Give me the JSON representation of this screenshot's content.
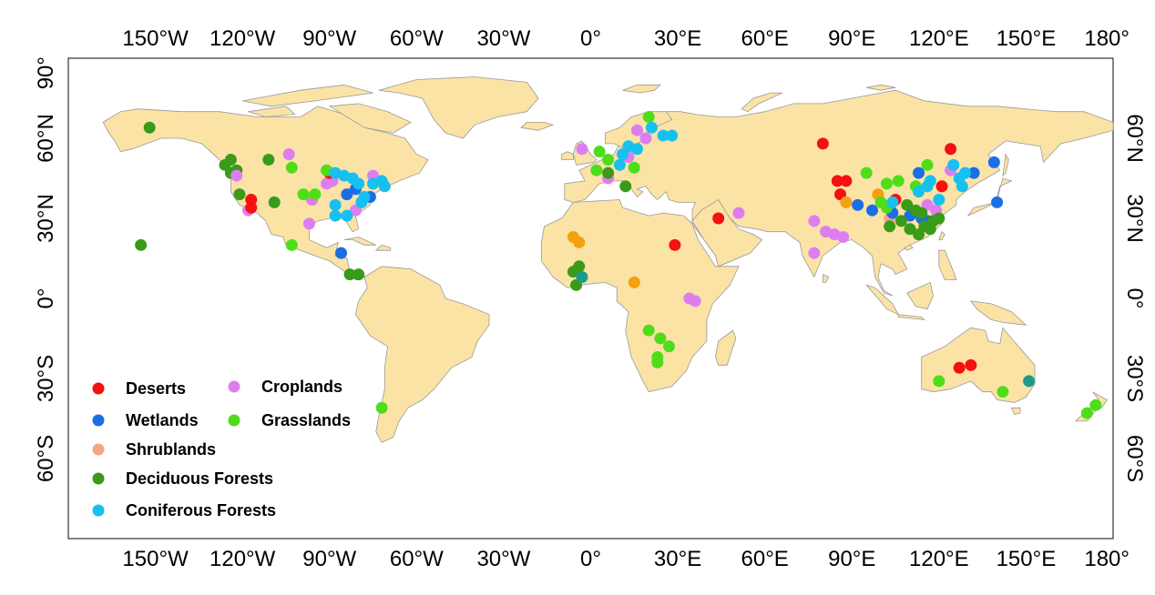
{
  "map": {
    "projection": "equirectangular",
    "extent": {
      "lon": [
        -180,
        180
      ],
      "lat": [
        -90,
        90
      ]
    },
    "land_color": "#fbe3a6",
    "border_color": "#9a9a9a",
    "lon_ticks": [
      {
        "value": -150,
        "label": "150°W"
      },
      {
        "value": -120,
        "label": "120°W"
      },
      {
        "value": -90,
        "label": "90°W"
      },
      {
        "value": -60,
        "label": "60°W"
      },
      {
        "value": -30,
        "label": "30°W"
      },
      {
        "value": 0,
        "label": "0°"
      },
      {
        "value": 30,
        "label": "30°E"
      },
      {
        "value": 60,
        "label": "60°E"
      },
      {
        "value": 90,
        "label": "90°E"
      },
      {
        "value": 120,
        "label": "120°E"
      },
      {
        "value": 150,
        "label": "150°E"
      },
      {
        "value": 180,
        "label": "180°"
      }
    ],
    "lat_ticks": [
      {
        "value": 90,
        "label": "90°"
      },
      {
        "value": 60,
        "label": "60°N"
      },
      {
        "value": 30,
        "label": "30°N"
      },
      {
        "value": 0,
        "label": "0°"
      },
      {
        "value": -30,
        "label": "30°S"
      },
      {
        "value": -60,
        "label": "60°S"
      }
    ]
  },
  "legend": {
    "placement": "bottom-left",
    "items": [
      {
        "key": "deserts",
        "label": "Deserts",
        "color": "#f5110f"
      },
      {
        "key": "wetlands",
        "label": "Wetlands",
        "color": "#1a6ee6"
      },
      {
        "key": "shrublands",
        "label": "Shrublands",
        "color": "#f4a582"
      },
      {
        "key": "deciduous",
        "label": "Deciduous Forests",
        "color": "#3a9a1a"
      },
      {
        "key": "coniferous",
        "label": "Coniferous Forests",
        "color": "#17c0ee"
      },
      {
        "key": "croplands",
        "label": "Croplands",
        "color": "#dd7ef0"
      },
      {
        "key": "grasslands",
        "label": "Grasslands",
        "color": "#4fdd1a"
      },
      {
        "key": "savanna",
        "label": "",
        "color": "#f5a00f"
      },
      {
        "key": "teal",
        "label": "",
        "color": "#1e9a8a"
      }
    ]
  },
  "sites": [
    {
      "cat": "deciduous",
      "lon": -152,
      "lat": 64
    },
    {
      "cat": "deciduous",
      "lon": -155,
      "lat": 20
    },
    {
      "cat": "deciduous",
      "lon": -126,
      "lat": 50
    },
    {
      "cat": "deciduous",
      "lon": -124,
      "lat": 52
    },
    {
      "cat": "deciduous",
      "lon": -124,
      "lat": 47
    },
    {
      "cat": "deciduous",
      "lon": -122,
      "lat": 48
    },
    {
      "cat": "deciduous",
      "lon": -121,
      "lat": 39
    },
    {
      "cat": "deciduous",
      "lon": -111,
      "lat": 52
    },
    {
      "cat": "deciduous",
      "lon": -109,
      "lat": 36
    },
    {
      "cat": "croplands",
      "lon": -122,
      "lat": 46
    },
    {
      "cat": "croplands",
      "lon": -104,
      "lat": 54
    },
    {
      "cat": "croplands",
      "lon": -118,
      "lat": 33
    },
    {
      "cat": "croplands",
      "lon": -96,
      "lat": 37
    },
    {
      "cat": "croplands",
      "lon": -97,
      "lat": 28
    },
    {
      "cat": "croplands",
      "lon": -91,
      "lat": 43
    },
    {
      "cat": "croplands",
      "lon": -89,
      "lat": 44
    },
    {
      "cat": "croplands",
      "lon": -81,
      "lat": 33
    },
    {
      "cat": "croplands",
      "lon": -75,
      "lat": 46
    },
    {
      "cat": "deserts",
      "lon": -117,
      "lat": 37
    },
    {
      "cat": "deserts",
      "lon": -117,
      "lat": 34
    },
    {
      "cat": "deserts",
      "lon": -90,
      "lat": 47
    },
    {
      "cat": "wetlands",
      "lon": -81,
      "lat": 41
    },
    {
      "cat": "wetlands",
      "lon": -84,
      "lat": 39
    },
    {
      "cat": "wetlands",
      "lon": -76,
      "lat": 38
    },
    {
      "cat": "wetlands",
      "lon": -86,
      "lat": 17
    },
    {
      "cat": "grasslands",
      "lon": -103,
      "lat": 49
    },
    {
      "cat": "grasslands",
      "lon": -99,
      "lat": 39
    },
    {
      "cat": "grasslands",
      "lon": -95,
      "lat": 39
    },
    {
      "cat": "grasslands",
      "lon": -91,
      "lat": 48
    },
    {
      "cat": "grasslands",
      "lon": -103,
      "lat": 20
    },
    {
      "cat": "grasslands",
      "lon": -72,
      "lat": -41
    },
    {
      "cat": "coniferous",
      "lon": -88,
      "lat": 47
    },
    {
      "cat": "coniferous",
      "lon": -85,
      "lat": 46
    },
    {
      "cat": "coniferous",
      "lon": -82,
      "lat": 45
    },
    {
      "cat": "coniferous",
      "lon": -80,
      "lat": 43
    },
    {
      "cat": "coniferous",
      "lon": -75,
      "lat": 43
    },
    {
      "cat": "coniferous",
      "lon": -72,
      "lat": 44
    },
    {
      "cat": "coniferous",
      "lon": -71,
      "lat": 42
    },
    {
      "cat": "coniferous",
      "lon": -78,
      "lat": 38
    },
    {
      "cat": "coniferous",
      "lon": -79,
      "lat": 36
    },
    {
      "cat": "coniferous",
      "lon": -88,
      "lat": 35
    },
    {
      "cat": "coniferous",
      "lon": -84,
      "lat": 31
    },
    {
      "cat": "coniferous",
      "lon": -88,
      "lat": 31
    },
    {
      "cat": "deciduous",
      "lon": -83,
      "lat": 9
    },
    {
      "cat": "deciduous",
      "lon": -80,
      "lat": 9
    },
    {
      "cat": "savanna",
      "lon": -6,
      "lat": 23
    },
    {
      "cat": "savanna",
      "lon": -4,
      "lat": 21
    },
    {
      "cat": "savanna",
      "lon": 15,
      "lat": 6
    },
    {
      "cat": "deciduous",
      "lon": -6,
      "lat": 10
    },
    {
      "cat": "deciduous",
      "lon": -4,
      "lat": 12
    },
    {
      "cat": "deciduous",
      "lon": -5,
      "lat": 5
    },
    {
      "cat": "teal",
      "lon": -3,
      "lat": 8
    },
    {
      "cat": "croplands",
      "lon": -3,
      "lat": 56
    },
    {
      "cat": "croplands",
      "lon": 6,
      "lat": 45
    },
    {
      "cat": "croplands",
      "lon": 16,
      "lat": 63
    },
    {
      "cat": "croplands",
      "lon": 19,
      "lat": 60
    },
    {
      "cat": "croplands",
      "lon": 13,
      "lat": 53
    },
    {
      "cat": "grasslands",
      "lon": 3,
      "lat": 55
    },
    {
      "cat": "grasslands",
      "lon": 6,
      "lat": 52
    },
    {
      "cat": "grasslands",
      "lon": 2,
      "lat": 48
    },
    {
      "cat": "grasslands",
      "lon": 20,
      "lat": 68
    },
    {
      "cat": "grasslands",
      "lon": 15,
      "lat": 49
    },
    {
      "cat": "grasslands",
      "lon": 20,
      "lat": -12
    },
    {
      "cat": "grasslands",
      "lon": 24,
      "lat": -15
    },
    {
      "cat": "grasslands",
      "lon": 27,
      "lat": -18
    },
    {
      "cat": "grasslands",
      "lon": 23,
      "lat": -22
    },
    {
      "cat": "grasslands",
      "lon": 23,
      "lat": -24
    },
    {
      "cat": "deciduous",
      "lon": 6,
      "lat": 47
    },
    {
      "cat": "deciduous",
      "lon": 12,
      "lat": 42
    },
    {
      "cat": "coniferous",
      "lon": 10,
      "lat": 50
    },
    {
      "cat": "coniferous",
      "lon": 11,
      "lat": 54
    },
    {
      "cat": "coniferous",
      "lon": 13,
      "lat": 57
    },
    {
      "cat": "coniferous",
      "lon": 16,
      "lat": 56
    },
    {
      "cat": "coniferous",
      "lon": 21,
      "lat": 64
    },
    {
      "cat": "coniferous",
      "lon": 25,
      "lat": 61
    },
    {
      "cat": "coniferous",
      "lon": 28,
      "lat": 61
    },
    {
      "cat": "deserts",
      "lon": 29,
      "lat": 20
    },
    {
      "cat": "deserts",
      "lon": 44,
      "lat": 30
    },
    {
      "cat": "croplands",
      "lon": 51,
      "lat": 32
    },
    {
      "cat": "croplands",
      "lon": 34,
      "lat": 0
    },
    {
      "cat": "croplands",
      "lon": 36,
      "lat": -1
    },
    {
      "cat": "deserts",
      "lon": 80,
      "lat": 58
    },
    {
      "cat": "deserts",
      "lon": 85,
      "lat": 44
    },
    {
      "cat": "deserts",
      "lon": 88,
      "lat": 44
    },
    {
      "cat": "deserts",
      "lon": 86,
      "lat": 39
    },
    {
      "cat": "deserts",
      "lon": 105,
      "lat": 37
    },
    {
      "cat": "deserts",
      "lon": 121,
      "lat": 42
    },
    {
      "cat": "deserts",
      "lon": 124,
      "lat": 56
    },
    {
      "cat": "deserts",
      "lon": 127,
      "lat": -26
    },
    {
      "cat": "deserts",
      "lon": 131,
      "lat": -25
    },
    {
      "cat": "croplands",
      "lon": 77,
      "lat": 29
    },
    {
      "cat": "croplands",
      "lon": 81,
      "lat": 25
    },
    {
      "cat": "croplands",
      "lon": 84,
      "lat": 24
    },
    {
      "cat": "croplands",
      "lon": 87,
      "lat": 23
    },
    {
      "cat": "croplands",
      "lon": 77,
      "lat": 17
    },
    {
      "cat": "croplands",
      "lon": 116,
      "lat": 35
    },
    {
      "cat": "croplands",
      "lon": 119,
      "lat": 33
    },
    {
      "cat": "croplands",
      "lon": 124,
      "lat": 48
    },
    {
      "cat": "savanna",
      "lon": 88,
      "lat": 36
    },
    {
      "cat": "savanna",
      "lon": 99,
      "lat": 39
    },
    {
      "cat": "shrublands",
      "lon": 103,
      "lat": 30
    },
    {
      "cat": "wetlands",
      "lon": 92,
      "lat": 35
    },
    {
      "cat": "wetlands",
      "lon": 97,
      "lat": 33
    },
    {
      "cat": "wetlands",
      "lon": 104,
      "lat": 32
    },
    {
      "cat": "wetlands",
      "lon": 110,
      "lat": 31
    },
    {
      "cat": "wetlands",
      "lon": 113,
      "lat": 47
    },
    {
      "cat": "wetlands",
      "lon": 114,
      "lat": 30
    },
    {
      "cat": "wetlands",
      "lon": 116,
      "lat": 29
    },
    {
      "cat": "wetlands",
      "lon": 132,
      "lat": 47
    },
    {
      "cat": "wetlands",
      "lon": 139,
      "lat": 51
    },
    {
      "cat": "wetlands",
      "lon": 140,
      "lat": 36
    },
    {
      "cat": "grasslands",
      "lon": 95,
      "lat": 47
    },
    {
      "cat": "grasslands",
      "lon": 102,
      "lat": 43
    },
    {
      "cat": "grasslands",
      "lon": 106,
      "lat": 44
    },
    {
      "cat": "grasslands",
      "lon": 100,
      "lat": 36
    },
    {
      "cat": "grasslands",
      "lon": 102,
      "lat": 34
    },
    {
      "cat": "grasslands",
      "lon": 116,
      "lat": 50
    },
    {
      "cat": "grasslands",
      "lon": 112,
      "lat": 42
    },
    {
      "cat": "grasslands",
      "lon": 120,
      "lat": -31
    },
    {
      "cat": "grasslands",
      "lon": 142,
      "lat": -35
    },
    {
      "cat": "grasslands",
      "lon": 171,
      "lat": -43
    },
    {
      "cat": "grasslands",
      "lon": 174,
      "lat": -40
    },
    {
      "cat": "deciduous",
      "lon": 103,
      "lat": 27
    },
    {
      "cat": "deciduous",
      "lon": 107,
      "lat": 29
    },
    {
      "cat": "deciduous",
      "lon": 110,
      "lat": 26
    },
    {
      "cat": "deciduous",
      "lon": 113,
      "lat": 24
    },
    {
      "cat": "deciduous",
      "lon": 115,
      "lat": 27
    },
    {
      "cat": "deciduous",
      "lon": 117,
      "lat": 26
    },
    {
      "cat": "deciduous",
      "lon": 118,
      "lat": 29
    },
    {
      "cat": "deciduous",
      "lon": 120,
      "lat": 30
    },
    {
      "cat": "deciduous",
      "lon": 112,
      "lat": 33
    },
    {
      "cat": "deciduous",
      "lon": 109,
      "lat": 35
    },
    {
      "cat": "deciduous",
      "lon": 114,
      "lat": 32
    },
    {
      "cat": "teal",
      "lon": 151,
      "lat": -31
    },
    {
      "cat": "coniferous",
      "lon": 104,
      "lat": 36
    },
    {
      "cat": "coniferous",
      "lon": 113,
      "lat": 40
    },
    {
      "cat": "coniferous",
      "lon": 116,
      "lat": 42
    },
    {
      "cat": "coniferous",
      "lon": 117,
      "lat": 44
    },
    {
      "cat": "coniferous",
      "lon": 120,
      "lat": 37
    },
    {
      "cat": "coniferous",
      "lon": 125,
      "lat": 50
    },
    {
      "cat": "coniferous",
      "lon": 127,
      "lat": 45
    },
    {
      "cat": "coniferous",
      "lon": 128,
      "lat": 42
    },
    {
      "cat": "coniferous",
      "lon": 129,
      "lat": 47
    }
  ]
}
